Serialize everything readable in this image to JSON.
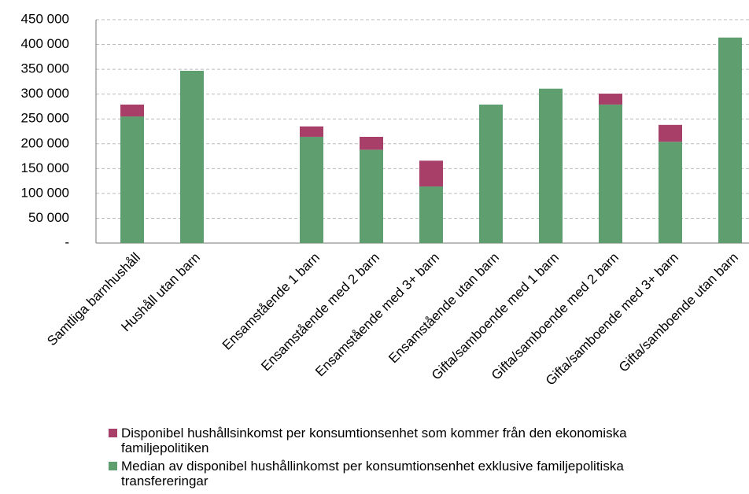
{
  "chart_data": {
    "type": "stacked_bar",
    "categories": [
      "Samtliga barnhushåll",
      "Hushåll utan barn",
      null,
      "Ensamstående 1 barn",
      "Ensamstående med 2 barn",
      "Ensamstående med 3+ barn",
      "Ensamstående utan barn",
      "Gifta/samboende med 1 barn",
      "Gifta/samboende med 2 barn",
      "Gifta/samboende med 3+ barn",
      "Gifta/samboende utan barn"
    ],
    "series": [
      {
        "name": "Median av disponibel hushållinkomst per konsumtionsenhet exklusive familjepolitiska transfereringar",
        "color": "#5f9e6e",
        "values": [
          255000,
          347000,
          null,
          214000,
          188000,
          114000,
          279000,
          311000,
          279000,
          204000,
          414000
        ]
      },
      {
        "name": "Disponibel hushållsinkomst per konsumtionsenhet som kommer från den ekonomiska familjepolitiken",
        "color": "#a83f68",
        "values": [
          24000,
          0,
          null,
          21000,
          26000,
          52000,
          0,
          0,
          22000,
          34000,
          0
        ]
      }
    ],
    "ylim": [
      0,
      450000
    ],
    "yticks": [
      {
        "value": 0,
        "label": "-"
      },
      {
        "value": 50000,
        "label": "50 000"
      },
      {
        "value": 100000,
        "label": "100 000"
      },
      {
        "value": 150000,
        "label": "150 000"
      },
      {
        "value": 200000,
        "label": "200 000"
      },
      {
        "value": 250000,
        "label": "250 000"
      },
      {
        "value": 300000,
        "label": "300 000"
      },
      {
        "value": 350000,
        "label": "350 000"
      },
      {
        "value": 400000,
        "label": "400 000"
      },
      {
        "value": 450000,
        "label": "450 000"
      }
    ],
    "grid": true
  }
}
